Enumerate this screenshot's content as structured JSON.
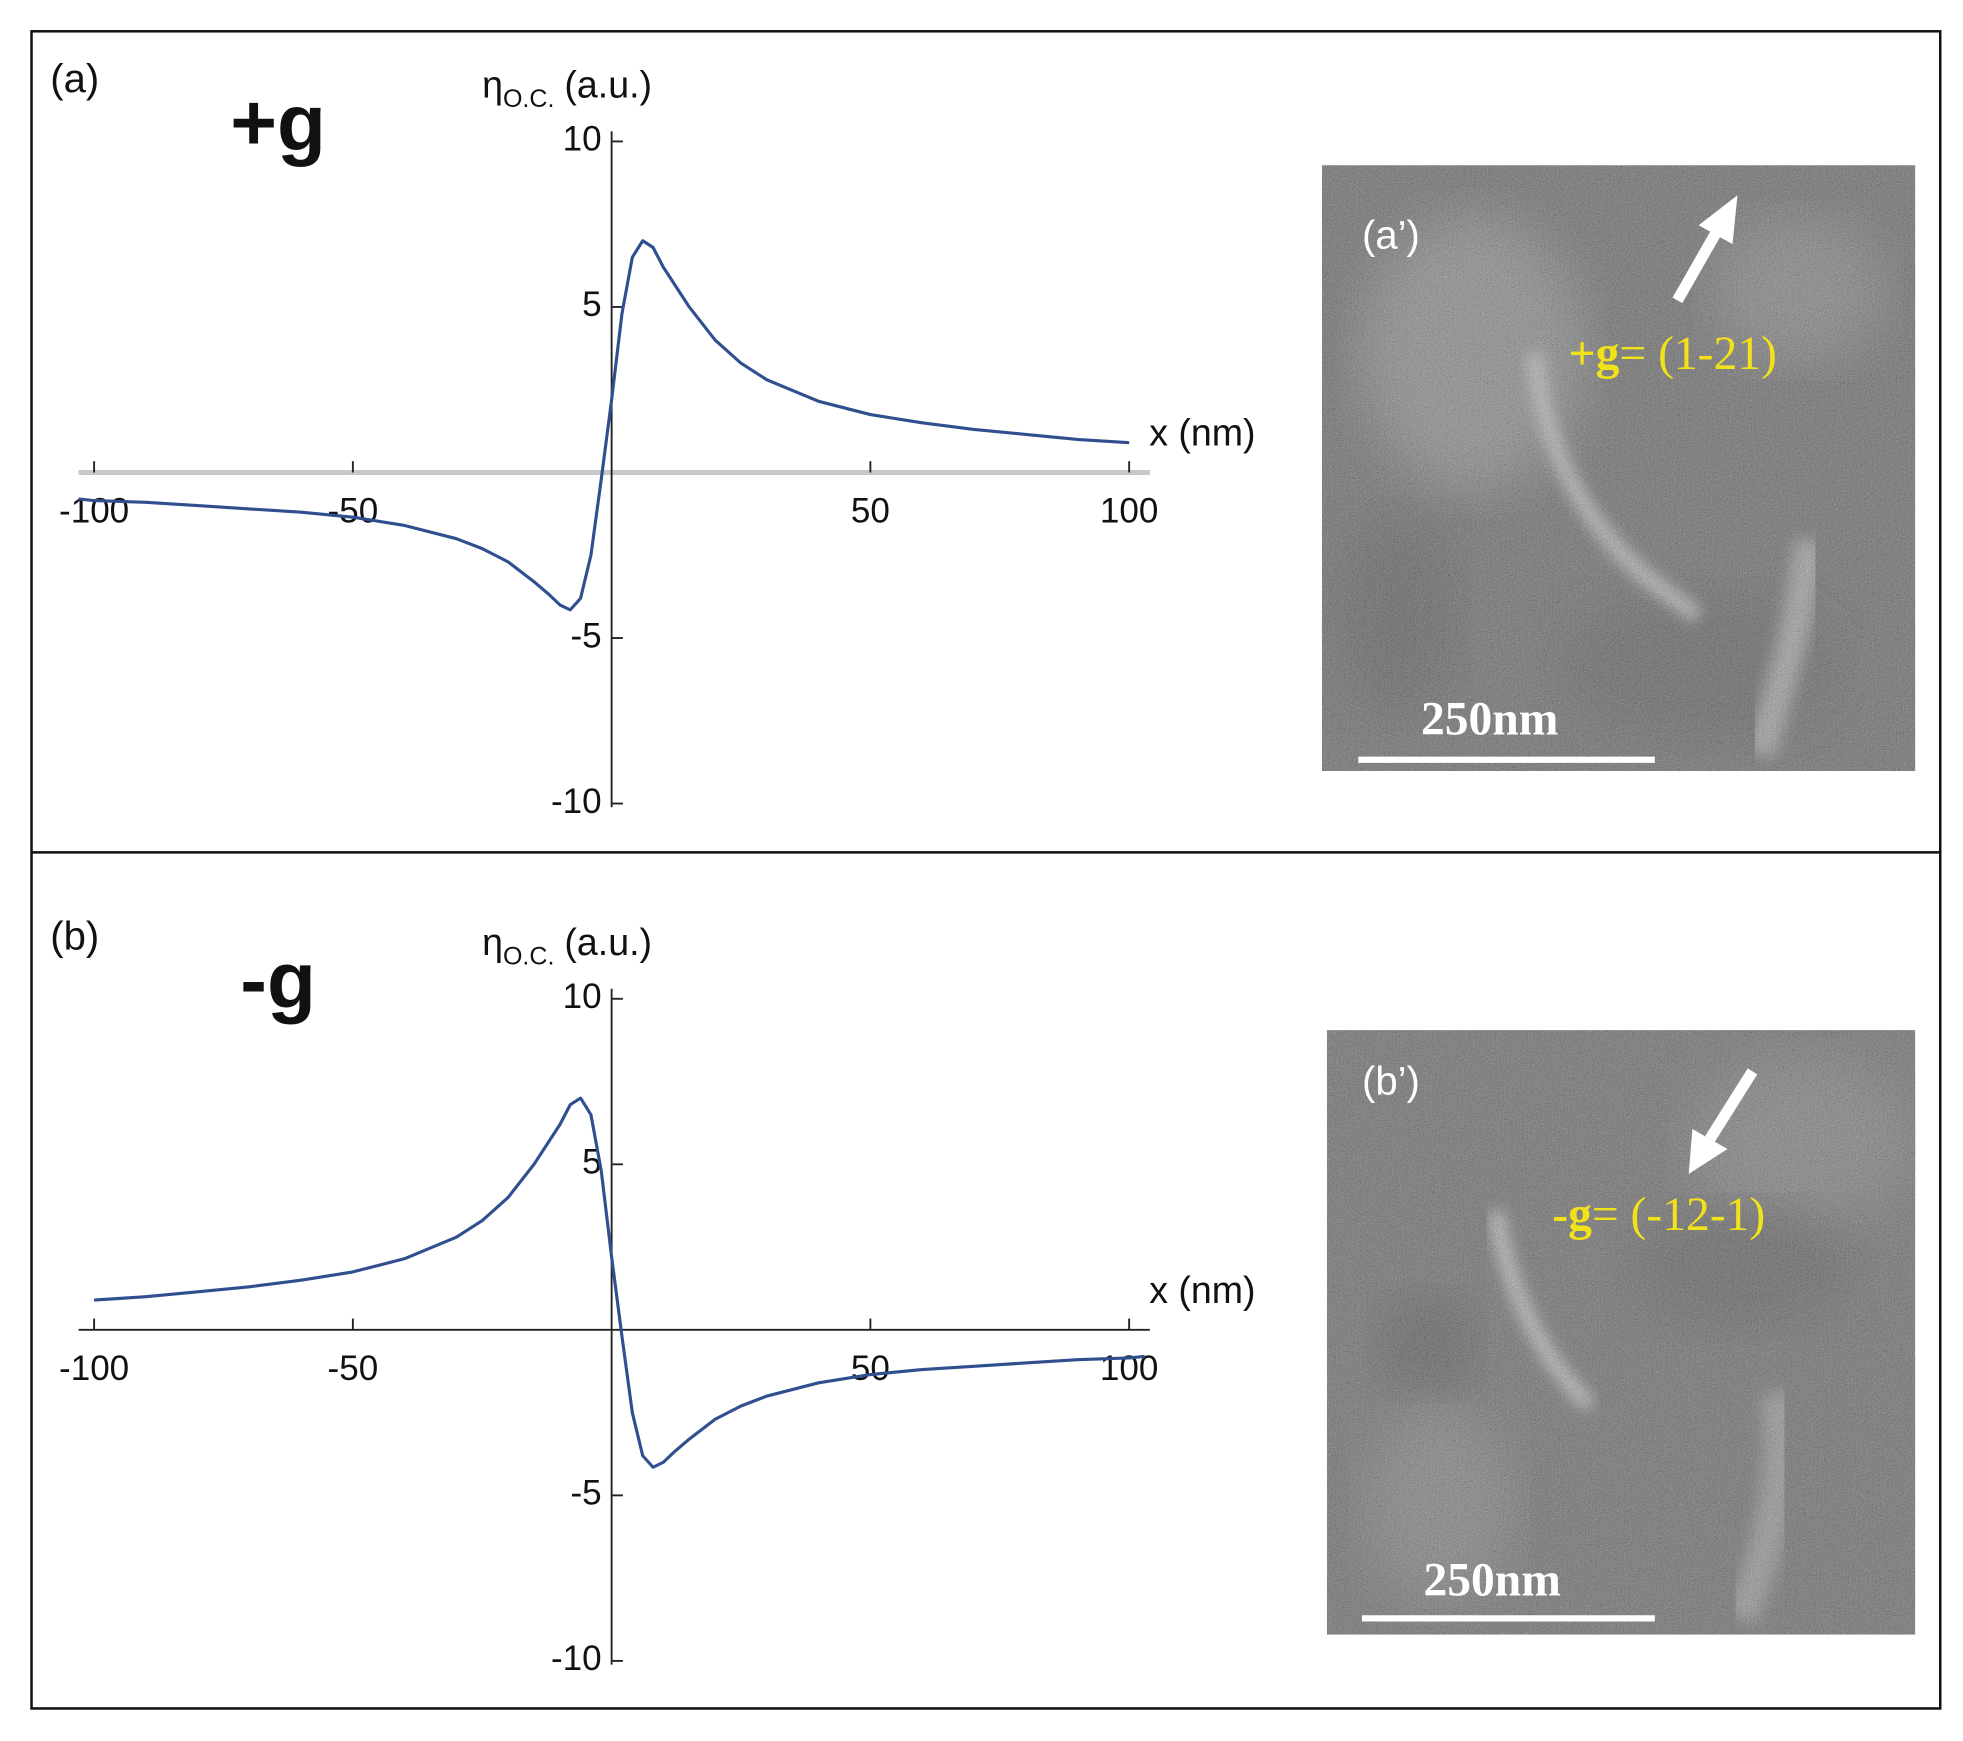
{
  "chart_data": [
    {
      "type": "line",
      "panel": "(a)",
      "title": "+g",
      "ylabel": {
        "symbol": "η",
        "subscript": "O.C.",
        "unit": "(a.u.)"
      },
      "xlabel": "x (nm)",
      "xlim": [
        -103,
        104
      ],
      "xticks": [
        -100,
        -50,
        50,
        100
      ],
      "ylim": [
        -10,
        10
      ],
      "yticks": [
        -10,
        -5,
        5,
        10
      ],
      "axis_color": "#c8c8c8",
      "color": "#2f4f8f",
      "x": [
        -103,
        -100,
        -90,
        -80,
        -70,
        -60,
        -50,
        -40,
        -30,
        -25,
        -20,
        -15,
        -12,
        -10,
        -8,
        -6,
        -4,
        -2,
        0,
        2,
        4,
        6,
        8,
        10,
        15,
        20,
        25,
        30,
        40,
        50,
        60,
        70,
        80,
        90,
        100
      ],
      "values": [
        -0.8,
        -0.85,
        -0.9,
        -1.0,
        -1.1,
        -1.2,
        -1.35,
        -1.6,
        -2.0,
        -2.3,
        -2.7,
        -3.3,
        -3.7,
        -4.0,
        -4.15,
        -3.8,
        -2.5,
        -0.2,
        2.2,
        4.8,
        6.5,
        7.0,
        6.8,
        6.2,
        5.0,
        4.0,
        3.3,
        2.8,
        2.15,
        1.75,
        1.5,
        1.3,
        1.15,
        1.0,
        0.9
      ]
    },
    {
      "type": "line",
      "panel": "(b)",
      "title": "-g",
      "ylabel": {
        "symbol": "η",
        "subscript": "O.C.",
        "unit": "(a.u.)"
      },
      "xlabel": "x (nm)",
      "xlim": [
        -103,
        104
      ],
      "xticks": [
        -100,
        -50,
        50,
        100
      ],
      "ylim": [
        -10,
        10
      ],
      "yticks": [
        -10,
        -5,
        5,
        10
      ],
      "axis_color": "#222222",
      "color": "#2f4f8f",
      "x": [
        -100,
        -90,
        -80,
        -70,
        -60,
        -50,
        -40,
        -30,
        -25,
        -20,
        -15,
        -10,
        -8,
        -6,
        -4,
        -2,
        0,
        2,
        4,
        6,
        8,
        10,
        12,
        15,
        20,
        25,
        30,
        40,
        50,
        60,
        70,
        80,
        90,
        100,
        103
      ],
      "values": [
        0.9,
        1.0,
        1.15,
        1.3,
        1.5,
        1.75,
        2.15,
        2.8,
        3.3,
        4.0,
        5.0,
        6.2,
        6.8,
        7.0,
        6.5,
        4.8,
        2.2,
        -0.2,
        -2.5,
        -3.8,
        -4.15,
        -4.0,
        -3.7,
        -3.3,
        -2.7,
        -2.3,
        -2.0,
        -1.6,
        -1.35,
        -1.2,
        -1.1,
        -1.0,
        -0.9,
        -0.85,
        -0.8
      ]
    }
  ],
  "images": [
    {
      "panel": "(a’)",
      "g_label": {
        "vector": "+g",
        "value": "= (1-21)"
      },
      "scale_bar": "250nm"
    },
    {
      "panel": "(b’)",
      "g_label": {
        "vector": "-g",
        "value": "= (-12-1)"
      },
      "scale_bar": "250nm"
    }
  ]
}
